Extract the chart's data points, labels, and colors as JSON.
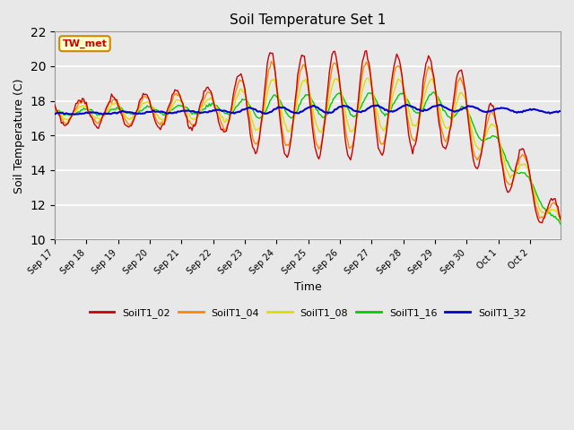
{
  "title": "Soil Temperature Set 1",
  "xlabel": "Time",
  "ylabel": "Soil Temperature (C)",
  "ylim": [
    10,
    22
  ],
  "yticks": [
    10,
    12,
    14,
    16,
    18,
    20,
    22
  ],
  "bg_color": "#e8e8e8",
  "series_colors": {
    "SoilT1_02": "#cc0000",
    "SoilT1_04": "#ff8800",
    "SoilT1_08": "#dddd00",
    "SoilT1_16": "#00cc00",
    "SoilT1_32": "#0000cc"
  },
  "annotation_text": "TW_met",
  "annotation_color": "#cc0000",
  "annotation_bg": "#ffffcc",
  "xtick_labels": [
    "Sep 17",
    "Sep 18",
    "Sep 19",
    "Sep 20",
    "Sep 21",
    "Sep 22",
    "Sep 23",
    "Sep 24",
    "Sep 25",
    "Sep 26",
    "Sep 27",
    "Sep 28",
    "Sep 29",
    "Sep 30",
    "Oct 1",
    "Oct 2"
  ]
}
